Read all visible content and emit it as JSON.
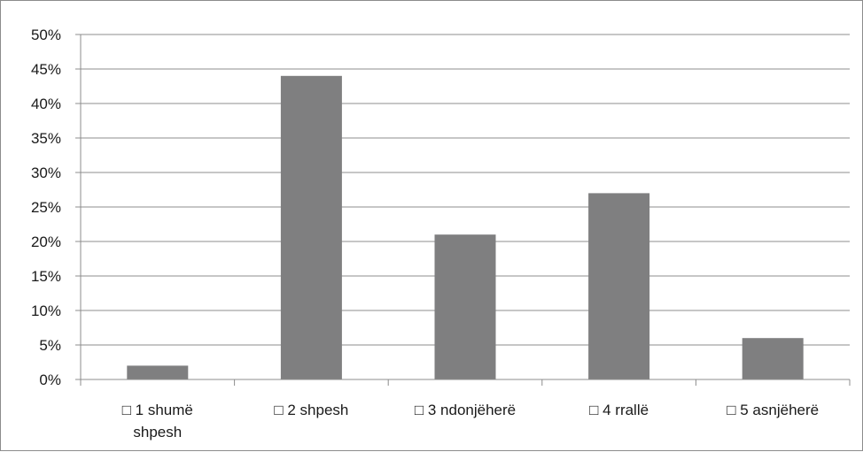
{
  "chart_data": {
    "type": "bar",
    "categories": [
      [
        "□ 1 shumë",
        "shpesh"
      ],
      [
        "□ 2 shpesh"
      ],
      [
        "□ 3 ndonjëherë"
      ],
      [
        "□ 4 rrallë"
      ],
      [
        "□ 5 asnjëherë"
      ]
    ],
    "values": [
      2,
      44,
      21,
      27,
      6
    ],
    "ylim": [
      0,
      50
    ],
    "ytick_step": 5,
    "ytick_labels": [
      "0%",
      "5%",
      "10%",
      "15%",
      "20%",
      "25%",
      "30%",
      "35%",
      "40%",
      "45%",
      "50%"
    ],
    "grid": true,
    "legend": "none",
    "bar_color": "#7f7f80",
    "grid_color": "#8c8c8c",
    "axis_color": "#8c8c8c"
  }
}
